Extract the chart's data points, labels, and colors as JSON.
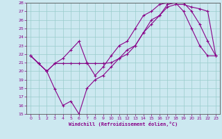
{
  "xlabel": "Windchill (Refroidissement éolien,°C)",
  "background_color": "#cce8f0",
  "line_color": "#880088",
  "grid_color": "#99cccc",
  "xlim": [
    -0.5,
    23.5
  ],
  "ylim": [
    15,
    28
  ],
  "yticks": [
    15,
    16,
    17,
    18,
    19,
    20,
    21,
    22,
    23,
    24,
    25,
    26,
    27,
    28
  ],
  "xticks": [
    0,
    1,
    2,
    3,
    4,
    5,
    6,
    7,
    8,
    9,
    10,
    11,
    12,
    13,
    14,
    15,
    16,
    17,
    18,
    19,
    20,
    21,
    22,
    23
  ],
  "line1_x": [
    0,
    1,
    2,
    3,
    4,
    5,
    6,
    7,
    8,
    9,
    10,
    11,
    12,
    13,
    14,
    15,
    16,
    17,
    18,
    19,
    20,
    21,
    22,
    23
  ],
  "line1_y": [
    21.8,
    20.9,
    20.0,
    20.9,
    20.9,
    20.9,
    20.9,
    20.9,
    20.9,
    20.9,
    21.0,
    21.5,
    22.0,
    23.0,
    24.5,
    25.5,
    26.5,
    27.5,
    27.8,
    27.8,
    27.5,
    27.3,
    27.0,
    21.8
  ],
  "line2_x": [
    0,
    1,
    2,
    3,
    4,
    5,
    6,
    7,
    8,
    9,
    10,
    11,
    12,
    13,
    14,
    15,
    16,
    17,
    18,
    19,
    20,
    21,
    22,
    23
  ],
  "line2_y": [
    21.8,
    20.9,
    20.0,
    20.9,
    21.5,
    22.5,
    23.5,
    21.0,
    19.5,
    20.5,
    21.8,
    23.0,
    23.5,
    25.0,
    26.5,
    27.0,
    27.8,
    28.0,
    28.0,
    27.0,
    25.0,
    23.0,
    21.8,
    21.8
  ],
  "line3_x": [
    0,
    1,
    2,
    3,
    4,
    5,
    6,
    7,
    8,
    9,
    10,
    11,
    12,
    13,
    14,
    15,
    16,
    17,
    18,
    19,
    20,
    21,
    22,
    23
  ],
  "line3_y": [
    21.8,
    20.9,
    20.0,
    17.9,
    16.0,
    16.5,
    15.0,
    18.0,
    19.0,
    19.5,
    20.5,
    21.5,
    22.5,
    23.0,
    24.5,
    26.0,
    26.5,
    27.8,
    28.0,
    28.0,
    27.0,
    25.5,
    23.5,
    21.8
  ]
}
